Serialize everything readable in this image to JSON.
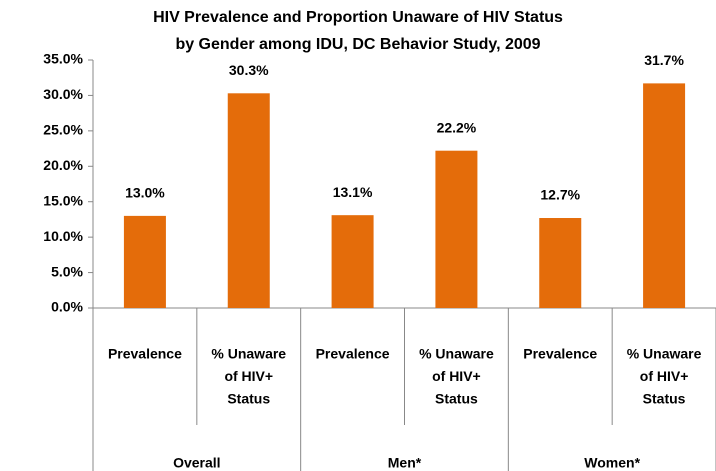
{
  "chart_data": {
    "type": "bar",
    "title": [
      "HIV Prevalence and Proportion Unaware of HIV Status",
      "by Gender among IDU, DC Behavior Study, 2009"
    ],
    "categories": [
      [
        "Prevalence"
      ],
      [
        "% Unaware",
        "of HIV+",
        "Status"
      ],
      [
        "Prevalence"
      ],
      [
        "% Unaware",
        "of HIV+",
        "Status"
      ],
      [
        "Prevalence"
      ],
      [
        "% Unaware",
        "of HIV+",
        "Status"
      ]
    ],
    "category_groups": [
      "Overall",
      "Men*",
      "Women*"
    ],
    "values": [
      13.0,
      30.3,
      13.1,
      22.2,
      12.7,
      31.7
    ],
    "value_labels": [
      "13.0%",
      "30.3%",
      "13.1%",
      "22.2%",
      "12.7%",
      "31.7%"
    ],
    "color": "#e46c0a",
    "ylim": [
      0,
      35
    ],
    "yticks": [
      {
        "value": 0,
        "label": "0.0%"
      },
      {
        "value": 5,
        "label": "5.0%"
      },
      {
        "value": 10,
        "label": "10.0%"
      },
      {
        "value": 15,
        "label": "15.0%"
      },
      {
        "value": 20,
        "label": "20.0%"
      },
      {
        "value": 25,
        "label": "25.0%"
      },
      {
        "value": 30,
        "label": "30.0%"
      },
      {
        "value": 35,
        "label": "35.0%"
      }
    ],
    "grid": false
  }
}
